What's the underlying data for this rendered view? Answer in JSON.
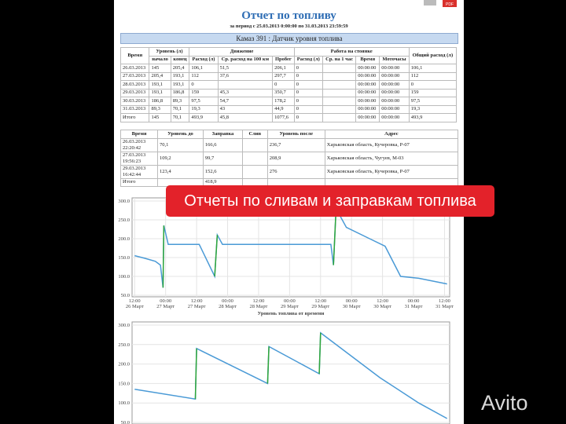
{
  "header": {
    "title": "Отчет по топливу",
    "period": "за период с 25.03.2013 0:00:00 по 31.03.2013 23:59:59",
    "section": "Камаз 391 : Датчик уровня топлива",
    "pdf_icon": "PDF"
  },
  "summary_table": {
    "groups": [
      "Уровень (л)",
      "Движение",
      "Работа на стоянке"
    ],
    "columns": [
      "Время",
      "начало",
      "конец",
      "Расход (л)",
      "Ср. расход на 100 км",
      "Пробег",
      "Расход (л)",
      "Ср. на 1 час",
      "Время",
      "Моточасы",
      "Общий расход (л)"
    ],
    "rows": [
      [
        "26.03.2013",
        "145",
        "205,4",
        "106,1",
        "51,5",
        "206,1",
        "0",
        null,
        "00:00:00",
        "00:00:00",
        "106,1"
      ],
      [
        "27.03.2013",
        "205,4",
        "193,1",
        "112",
        "37,6",
        "297,7",
        "0",
        null,
        "00:00:00",
        "00:00:00",
        "112"
      ],
      [
        "28.03.2013",
        "193,1",
        "193,1",
        "0",
        null,
        "0",
        "0",
        null,
        "00:00:00",
        "00:00:00",
        "0"
      ],
      [
        "29.03.2013",
        "193,1",
        "186,8",
        "159",
        "45,3",
        "350,7",
        "0",
        null,
        "00:00:00",
        "00:00:00",
        "159"
      ],
      [
        "30.03.2013",
        "186,8",
        "89,3",
        "97,5",
        "54,7",
        "178,2",
        "0",
        null,
        "00:00:00",
        "00:00:00",
        "97,5"
      ],
      [
        "31.03.2013",
        "89,3",
        "70,1",
        "19,3",
        "43",
        "44,9",
        "0",
        null,
        "00:00:00",
        "00:00:00",
        "19,3"
      ],
      [
        "Итого",
        "145",
        "70,1",
        "493,9",
        "45,8",
        "1077,6",
        "0",
        null,
        "00:00:00",
        "00:00:00",
        "493,9"
      ]
    ]
  },
  "refuel_table": {
    "columns": [
      "Время",
      "Уровень до",
      "Заправка",
      "Слив",
      "Уровень после",
      "Адрес"
    ],
    "rows": [
      [
        "26.03.2013 22:20:42",
        "70,1",
        "166,6",
        null,
        "236,7",
        "Харьковская область, Кучеровка, Р-07"
      ],
      [
        "27.03.2013 19:56:23",
        "109,2",
        "99,7",
        null,
        "208,9",
        "Харьковская область, Чугуев, М-03"
      ],
      [
        "29.03.2013 16:42:44",
        "123,4",
        "152,6",
        null,
        "276",
        "Харьковская область, Кучеровка, Р-07"
      ],
      [
        "Итого",
        null,
        "418,9",
        null,
        null,
        null
      ]
    ]
  },
  "banner": "Отчеты по сливам и заправкам топлива",
  "watermark": "Avito",
  "chart_data": [
    {
      "type": "line",
      "caption": "Уровень топлива от времени",
      "grid": true,
      "xlim": [
        -1,
        122
      ],
      "ylim": [
        50,
        300
      ],
      "xticks": [
        {
          "value": 0,
          "label": "12:00",
          "sublabel": "26 Март"
        },
        {
          "value": 12,
          "label": "00:00",
          "sublabel": "27 Март"
        },
        {
          "value": 24,
          "label": "12:00",
          "sublabel": "27 Март"
        },
        {
          "value": 36,
          "label": "00:00",
          "sublabel": "28 Март"
        },
        {
          "value": 48,
          "label": "12:00",
          "sublabel": "28 Март"
        },
        {
          "value": 60,
          "label": "00:00",
          "sublabel": "29 Март"
        },
        {
          "value": 72,
          "label": "12:00",
          "sublabel": "29 Март"
        },
        {
          "value": 84,
          "label": "00:00",
          "sublabel": "30 Март"
        },
        {
          "value": 96,
          "label": "12:00",
          "sublabel": "30 Март"
        },
        {
          "value": 108,
          "label": "00:00",
          "sublabel": "31 Март"
        },
        {
          "value": 120,
          "label": "12:00",
          "sublabel": "31 Март"
        }
      ],
      "yticks": [
        {
          "value": 300,
          "label": "300.0"
        },
        {
          "value": 250,
          "label": "250.0"
        },
        {
          "value": 200,
          "label": "200.0"
        },
        {
          "value": 150,
          "label": "150.0"
        },
        {
          "value": 100,
          "label": "100.0"
        },
        {
          "value": 50,
          "label": "50.0"
        }
      ],
      "series": [
        {
          "color": "#4a9ad6",
          "x": [
            0,
            4,
            8,
            10,
            11,
            11.3,
            13,
            25,
            31,
            32,
            34,
            76,
            77,
            78,
            82,
            91,
            97,
            103,
            110,
            121
          ],
          "values": [
            155,
            148,
            140,
            130,
            70,
            235,
            185,
            185,
            100,
            210,
            185,
            185,
            130,
            280,
            230,
            200,
            180,
            100,
            95,
            80
          ]
        },
        {
          "color": "#2fa63a",
          "x": [
            11,
            11.3,
            null,
            31,
            32,
            null,
            77,
            78
          ],
          "values": [
            70,
            235,
            null,
            100,
            210,
            null,
            130,
            280
          ]
        }
      ]
    },
    {
      "type": "line",
      "grid": true,
      "xlim": [
        -1,
        122
      ],
      "ylim": [
        50,
        300
      ],
      "yticks": [
        {
          "value": 300,
          "label": "300.0"
        },
        {
          "value": 250,
          "label": "250.0"
        },
        {
          "value": 200,
          "label": "200.0"
        },
        {
          "value": 150,
          "label": "150.0"
        },
        {
          "value": 100,
          "label": "100.0"
        },
        {
          "value": 50,
          "label": "50.0"
        }
      ],
      "series": [
        {
          "color": "#4a9ad6",
          "x": [
            0,
            23.5,
            24,
            51.5,
            52,
            71.5,
            72,
            95,
            110,
            121
          ],
          "values": [
            135,
            110,
            240,
            150,
            245,
            175,
            280,
            165,
            100,
            60
          ]
        },
        {
          "color": "#2fa63a",
          "x": [
            23.5,
            24,
            null,
            51.5,
            52,
            null,
            71.5,
            72
          ],
          "values": [
            110,
            240,
            null,
            150,
            245,
            null,
            175,
            280
          ]
        }
      ]
    }
  ]
}
